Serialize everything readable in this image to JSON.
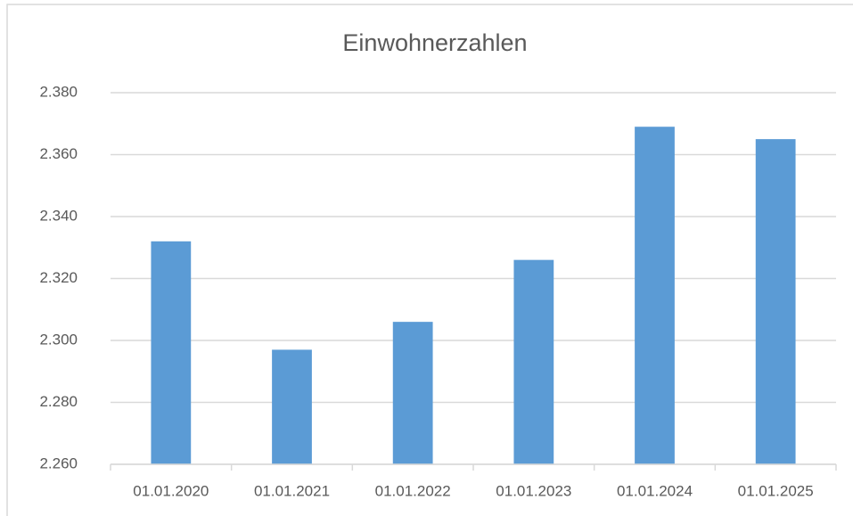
{
  "chart_data": {
    "type": "bar",
    "title": "Einwohnerzahlen",
    "categories": [
      "01.01.2020",
      "01.01.2021",
      "01.01.2022",
      "01.01.2023",
      "01.01.2024",
      "01.01.2025"
    ],
    "values": [
      2332,
      2297,
      2306,
      2326,
      2369,
      2365
    ],
    "color": "#5b9bd5",
    "ylim": [
      2260,
      2380
    ],
    "yticks": [
      {
        "value": 2260,
        "label": "2.260"
      },
      {
        "value": 2280,
        "label": "2.280"
      },
      {
        "value": 2300,
        "label": "2.300"
      },
      {
        "value": 2320,
        "label": "2.320"
      },
      {
        "value": 2340,
        "label": "2.340"
      },
      {
        "value": 2360,
        "label": "2.360"
      },
      {
        "value": 2380,
        "label": "2.380"
      }
    ],
    "grid": true
  }
}
